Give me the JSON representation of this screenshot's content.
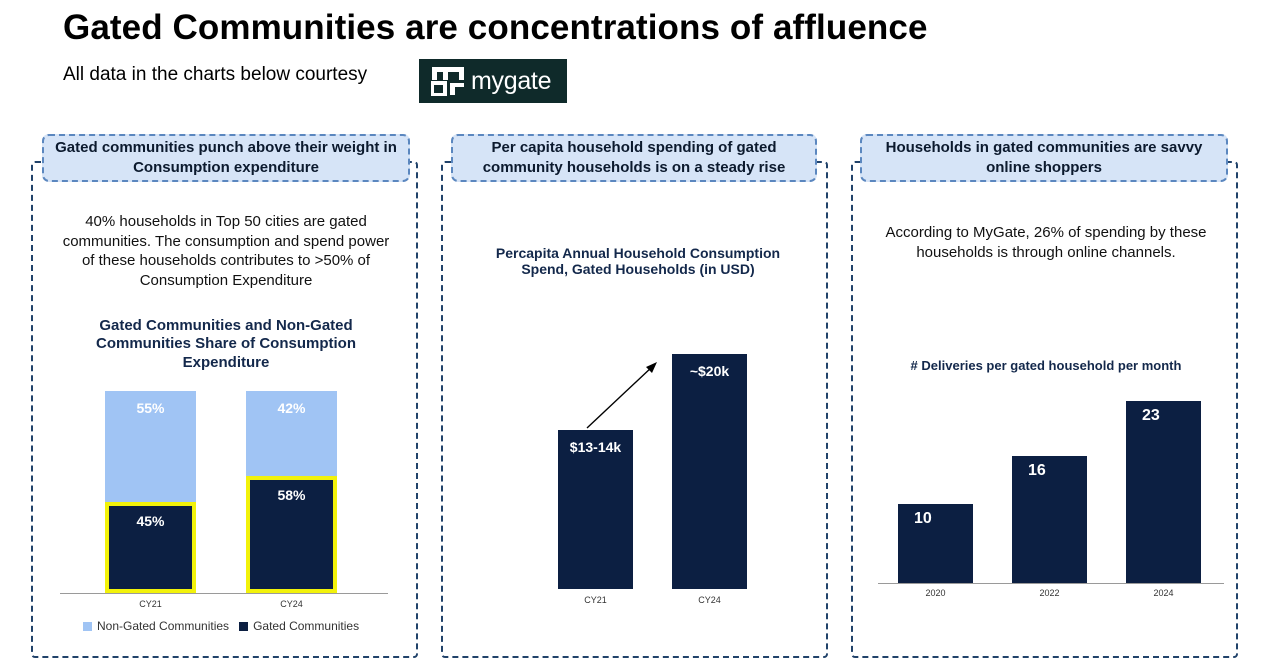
{
  "header": {
    "title": "Gated Communities are concentrations of affluence",
    "subtitle": "All data in the charts below courtesy",
    "logo_text": "mygate",
    "logo_icon": "mygate-logo-icon"
  },
  "colors": {
    "dark_bar": "#0c1f42",
    "light_bar": "#a0c4f4",
    "highlight": "#f2f20a",
    "pill_bg": "#d6e4f7",
    "dash": "#21426a"
  },
  "panels": [
    {
      "pill": "Gated communities punch above their weight in Consumption expenditure",
      "description": "40% households in Top 50 cities are gated communities. The consumption and spend power of these households contributes to >50% of Consumption Expenditure"
    },
    {
      "pill": "Per capita household spending of gated community households is on a steady rise",
      "description": ""
    },
    {
      "pill": "Households in gated communities are savvy online shoppers",
      "description": "According to MyGate, 26% of spending by these households is through online channels."
    }
  ],
  "chart_data": [
    {
      "type": "bar",
      "stacked": true,
      "title": "Gated Communities and Non-Gated Communities Share of Consumption Expenditure",
      "categories": [
        "CY21",
        "CY24"
      ],
      "series": [
        {
          "name": "Gated Communities",
          "values": [
            45,
            58
          ],
          "labels": [
            "45%",
            "58%"
          ],
          "highlighted": true
        },
        {
          "name": "Non-Gated Communities",
          "values": [
            55,
            42
          ],
          "labels": [
            "55%",
            "42%"
          ]
        }
      ],
      "ylim": [
        0,
        100
      ],
      "legend_position": "bottom-left",
      "legend": [
        "Non-Gated Communities",
        "Gated Communities"
      ]
    },
    {
      "type": "bar",
      "title": "Percapita Annual Household Consumption Spend, Gated Households (in USD)",
      "categories": [
        "CY21",
        "CY24"
      ],
      "values": [
        13500,
        20000
      ],
      "labels": [
        "$13-14k",
        "~$20k"
      ],
      "ylim": [
        0,
        20000
      ],
      "annotation": "upward-trend-arrow"
    },
    {
      "type": "bar",
      "title": "# Deliveries per gated household per month",
      "categories": [
        "2020",
        "2022",
        "2024"
      ],
      "values": [
        10,
        16,
        23
      ],
      "labels": [
        "10",
        "16",
        "23"
      ],
      "ylim": [
        0,
        23
      ]
    }
  ]
}
